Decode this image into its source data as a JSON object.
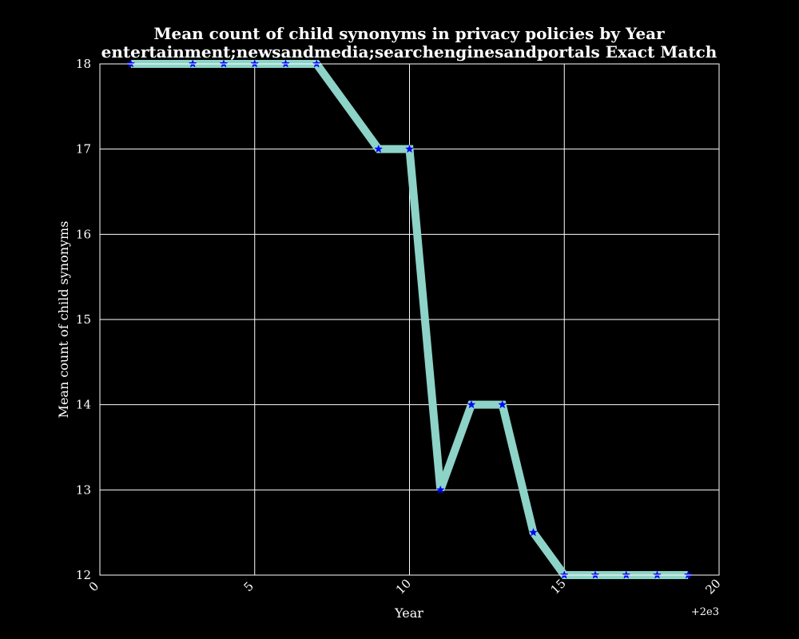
{
  "chart_data": {
    "type": "line",
    "title_line1": "Mean count of child synonyms in privacy policies by Year",
    "title_line2": "entertainment;newsandmedia;searchenginesandportals Exact Match",
    "xlabel": "Year",
    "ylabel": "Mean count of child synonyms",
    "x_offset_label": "+2e3",
    "xlim": [
      0,
      20
    ],
    "ylim": [
      12,
      18
    ],
    "x_ticks": [
      0,
      5,
      10,
      15,
      20
    ],
    "x_tick_labels": [
      "0",
      "5",
      "10",
      "15",
      "20"
    ],
    "y_ticks": [
      12,
      13,
      14,
      15,
      16,
      17,
      18
    ],
    "y_tick_labels": [
      "12",
      "13",
      "14",
      "15",
      "16",
      "17",
      "18"
    ],
    "grid": true,
    "series": [
      {
        "x": [
          1,
          3,
          4,
          5,
          6,
          7,
          9,
          10,
          11,
          12,
          13,
          14,
          15,
          16,
          17,
          18,
          19
        ],
        "y": [
          18,
          18,
          18,
          18,
          18,
          18,
          17,
          17,
          13,
          14,
          14,
          12.5,
          12,
          12,
          12,
          12,
          12
        ],
        "line_color": "#8dd3c7",
        "marker": "star",
        "marker_color": "#0000ff"
      }
    ],
    "background_color": "#000000",
    "foreground_color": "#ffffff"
  }
}
